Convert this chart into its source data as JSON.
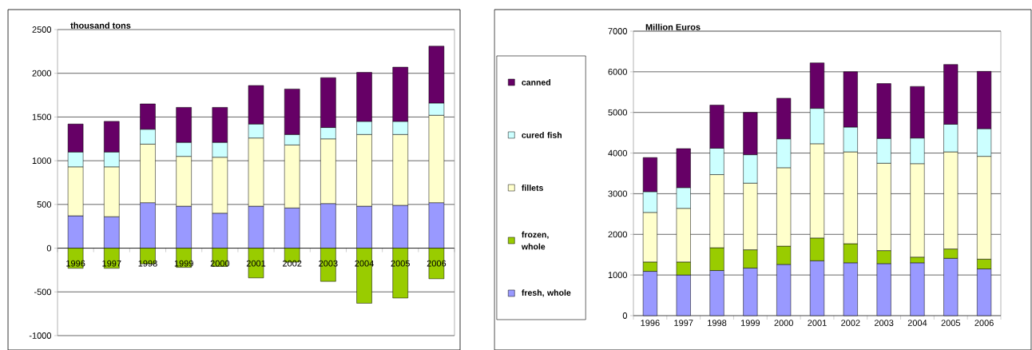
{
  "chart_data": [
    {
      "type": "bar",
      "stacked": true,
      "ylabel": "thousand tons",
      "categories": [
        "1996",
        "1997",
        "1998",
        "1999",
        "2000",
        "2001",
        "2002",
        "2003",
        "2004",
        "2005",
        "2006"
      ],
      "ylim": [
        -1000,
        2500
      ],
      "yticks": [
        -1000,
        -500,
        0,
        500,
        1000,
        1500,
        2000,
        2500
      ],
      "grid": "y",
      "series": [
        {
          "color": "#9999ff",
          "values": [
            370,
            360,
            520,
            480,
            400,
            480,
            460,
            510,
            480,
            490,
            520
          ]
        },
        {
          "color": "#99cc00",
          "values": [
            -230,
            -230,
            -180,
            -220,
            -210,
            -340,
            -160,
            -380,
            -630,
            -570,
            -350
          ]
        },
        {
          "color": "#ffffcc",
          "values": [
            560,
            570,
            670,
            570,
            640,
            780,
            720,
            740,
            820,
            810,
            1000
          ]
        },
        {
          "color": "#ccffff",
          "values": [
            170,
            170,
            170,
            160,
            170,
            160,
            120,
            130,
            150,
            150,
            140
          ]
        },
        {
          "color": "#660066",
          "values": [
            320,
            350,
            290,
            400,
            400,
            440,
            520,
            570,
            560,
            620,
            650
          ]
        }
      ]
    },
    {
      "type": "bar",
      "stacked": true,
      "ylabel": "Million Euros",
      "categories": [
        "1996",
        "1997",
        "1998",
        "1999",
        "2000",
        "2001",
        "2002",
        "2003",
        "2004",
        "2005",
        "2006"
      ],
      "ylim": [
        0,
        7000
      ],
      "yticks": [
        0,
        1000,
        2000,
        3000,
        4000,
        5000,
        6000,
        7000
      ],
      "grid": "y",
      "legend": "left",
      "series": [
        {
          "name": "fresh, whole",
          "color": "#9999ff",
          "values": [
            1090,
            1000,
            1110,
            1170,
            1260,
            1350,
            1300,
            1280,
            1300,
            1410,
            1150
          ]
        },
        {
          "name": "frozen, whole",
          "color": "#99cc00",
          "values": [
            230,
            320,
            560,
            450,
            450,
            560,
            470,
            320,
            140,
            230,
            240
          ]
        },
        {
          "name": "fillets",
          "color": "#ffffcc",
          "values": [
            1220,
            1320,
            1800,
            1640,
            1930,
            2320,
            2260,
            2150,
            2300,
            2390,
            2530
          ]
        },
        {
          "name": "cured fish",
          "color": "#ccffff",
          "values": [
            510,
            510,
            650,
            700,
            710,
            870,
            610,
            610,
            630,
            680,
            680
          ]
        },
        {
          "name": "canned",
          "color": "#660066",
          "values": [
            840,
            960,
            1060,
            1040,
            1000,
            1120,
            1360,
            1350,
            1270,
            1470,
            1410
          ]
        }
      ]
    }
  ]
}
